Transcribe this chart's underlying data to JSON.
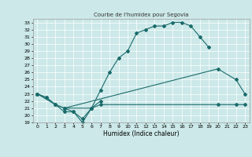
{
  "title": "Courbe de l'humidex pour Segovia",
  "xlabel": "Humidex (Indice chaleur)",
  "xlim": [
    -0.5,
    23.5
  ],
  "ylim": [
    19,
    33.5
  ],
  "xticks": [
    0,
    1,
    2,
    3,
    4,
    5,
    6,
    7,
    8,
    9,
    10,
    11,
    12,
    13,
    14,
    15,
    16,
    17,
    18,
    19,
    20,
    21,
    22,
    23
  ],
  "yticks": [
    19,
    20,
    21,
    22,
    23,
    24,
    25,
    26,
    27,
    28,
    29,
    30,
    31,
    32,
    33
  ],
  "bg_color": "#cce8e8",
  "line_color": "#1a6b6b",
  "line1_x": [
    0,
    1,
    2,
    3,
    4,
    5,
    6,
    7,
    8,
    9,
    10,
    11,
    12,
    13,
    14,
    15,
    16,
    17,
    18,
    19
  ],
  "line1_y": [
    23,
    22.5,
    21.5,
    20.5,
    20.5,
    19,
    21,
    23.5,
    26,
    28,
    29,
    31.5,
    32,
    32.5,
    32.5,
    33,
    33,
    32.5,
    31,
    29.5
  ],
  "line2_x": [
    0,
    1,
    2,
    3,
    4,
    5,
    6,
    7
  ],
  "line2_y": [
    23,
    22.5,
    21.5,
    21,
    20.5,
    19.5,
    21,
    22
  ],
  "line3_x": [
    3,
    20,
    22,
    23
  ],
  "line3_y": [
    21,
    26.5,
    25,
    23
  ],
  "line4_x": [
    0,
    2,
    3,
    6,
    7,
    20,
    22,
    23
  ],
  "line4_y": [
    23,
    21.5,
    21,
    21,
    21.5,
    21.5,
    21.5,
    21.5
  ]
}
